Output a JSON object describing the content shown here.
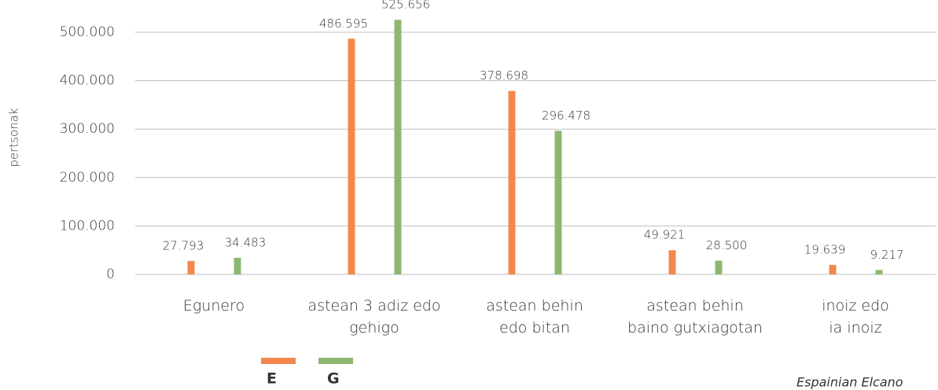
{
  "chart_data": {
    "type": "bar",
    "y_label": "pertsonak",
    "categories": [
      "Egunero",
      "astean 3 adiz edo\ngehigo",
      "astean behin\nedo bitan",
      "astean behin\nbaino gutxiagotan",
      "inoiz edo\nia inoiz"
    ],
    "series": [
      {
        "name": "E",
        "color": "#f4874b",
        "values": [
          27793,
          486595,
          378698,
          49921,
          19639
        ],
        "value_labels": [
          "27.793",
          "486.595",
          "378.698",
          "49.921",
          "19.639"
        ]
      },
      {
        "name": "G",
        "color": "#8db870",
        "values": [
          34483,
          525656,
          296478,
          28500,
          9217
        ],
        "value_labels": [
          "34.483",
          "525.656",
          "296.478",
          "28.500",
          "9.217"
        ]
      }
    ],
    "ylim": [
      0,
      500000
    ],
    "yticks": [
      0,
      {
        "value": 100000,
        "label": "100.000"
      },
      {
        "value": 200000,
        "label": "200.000"
      },
      {
        "value": 300000,
        "label": "300.000"
      },
      {
        "value": 400000,
        "label": "400.000"
      },
      {
        "value": 500000,
        "label": "500.000"
      }
    ],
    "grid": true,
    "source": "Espainian Elcano"
  }
}
